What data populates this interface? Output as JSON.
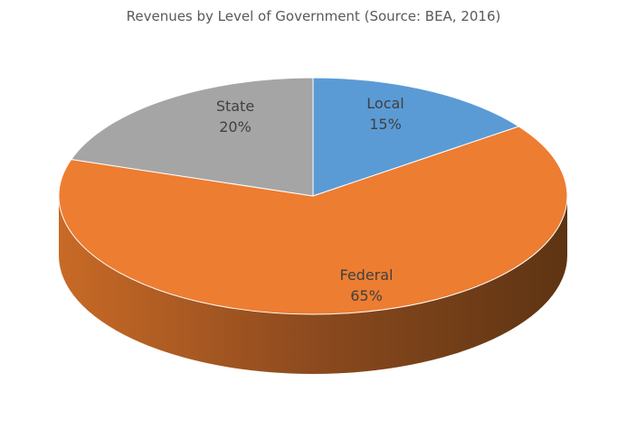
{
  "chart_data": {
    "type": "pie",
    "title": "Revenues by Level of Government (Source: BEA, 2016)",
    "slices": [
      {
        "name": "Local",
        "value": 15,
        "label": "15%",
        "color": "#5B9BD5"
      },
      {
        "name": "Federal",
        "value": 65,
        "label": "65%",
        "color": "#ED7D31",
        "side_color": "#A0521E"
      },
      {
        "name": "State",
        "value": 20,
        "label": "20%",
        "color": "#A5A5A5"
      }
    ],
    "style": "3d",
    "legend": "none"
  }
}
